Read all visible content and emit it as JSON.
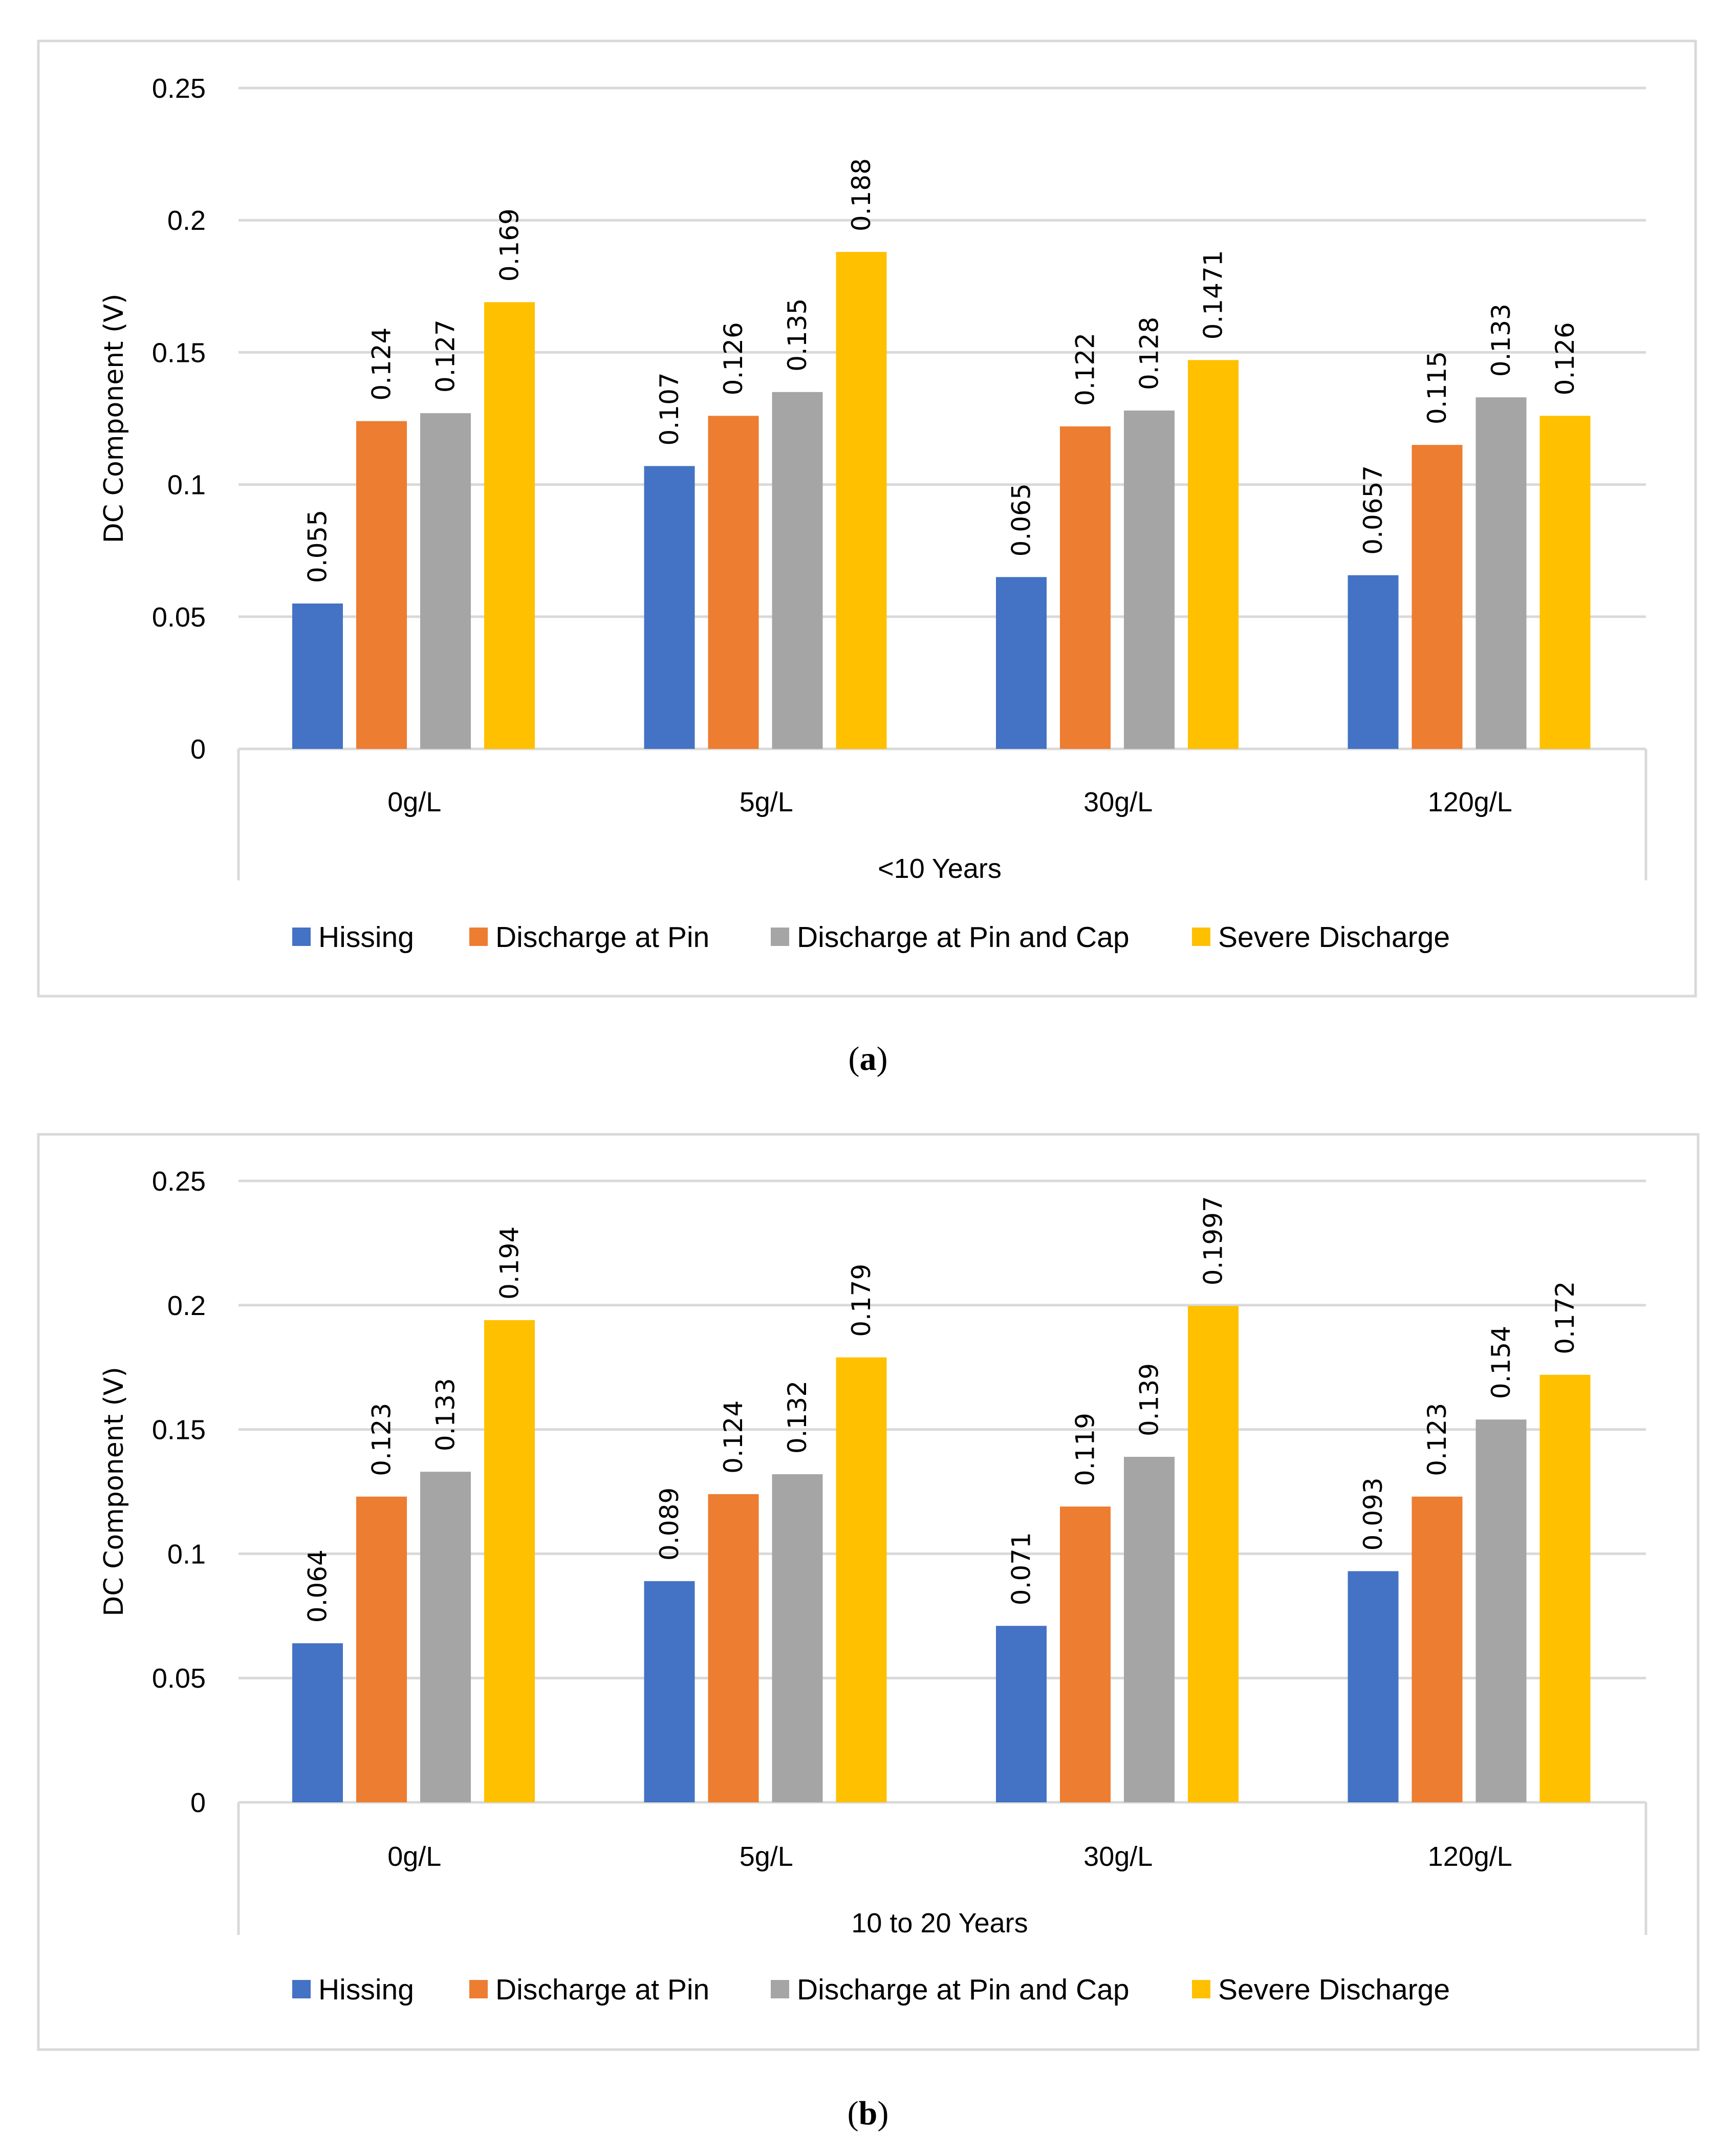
{
  "colors": {
    "series": [
      "#4472C4",
      "#ED7D31",
      "#A5A5A5",
      "#FFC000"
    ],
    "grid": "#D9D9D9",
    "frame": "#D9D9D9"
  },
  "chart_data": [
    {
      "type": "bar",
      "caption_letter": "a",
      "xlabel": "<10 Years",
      "ylabel": "DC Component (V)",
      "ylim": [
        0,
        0.25
      ],
      "yticks": [
        "0",
        "0.05",
        "0.1",
        "0.15",
        "0.2",
        "0.25"
      ],
      "grid": true,
      "legend": "bottom",
      "categories": [
        "0g/L",
        "5g/L",
        "30g/L",
        "120g/L"
      ],
      "series": [
        {
          "name": "Hissing",
          "values": [
            0.055,
            0.107,
            0.065,
            0.0657
          ],
          "labels": [
            "0.055",
            "0.107",
            "0.065",
            "0.0657"
          ]
        },
        {
          "name": "Discharge at Pin",
          "values": [
            0.124,
            0.126,
            0.122,
            0.115
          ],
          "labels": [
            "0.124",
            "0.126",
            "0.122",
            "0.115"
          ]
        },
        {
          "name": "Discharge at Pin and Cap",
          "values": [
            0.127,
            0.135,
            0.128,
            0.133
          ],
          "labels": [
            "0.127",
            "0.135",
            "0.128",
            "0.133"
          ]
        },
        {
          "name": "Severe Discharge",
          "values": [
            0.169,
            0.188,
            0.1471,
            0.126
          ],
          "labels": [
            "0.169",
            "0.188",
            "0.1471",
            "0.126"
          ]
        }
      ]
    },
    {
      "type": "bar",
      "caption_letter": "b",
      "xlabel": "10 to 20 Years",
      "ylabel": "DC Component (V)",
      "ylim": [
        0,
        0.25
      ],
      "yticks": [
        "0",
        "0.05",
        "0.1",
        "0.15",
        "0.2",
        "0.25"
      ],
      "grid": true,
      "legend": "bottom",
      "categories": [
        "0g/L",
        "5g/L",
        "30g/L",
        "120g/L"
      ],
      "series": [
        {
          "name": "Hissing",
          "values": [
            0.064,
            0.089,
            0.071,
            0.093
          ],
          "labels": [
            "0.064",
            "0.089",
            "0.071",
            "0.093"
          ]
        },
        {
          "name": "Discharge at Pin",
          "values": [
            0.123,
            0.124,
            0.119,
            0.123
          ],
          "labels": [
            "0.123",
            "0.124",
            "0.119",
            "0.123"
          ]
        },
        {
          "name": "Discharge at Pin and Cap",
          "values": [
            0.133,
            0.132,
            0.139,
            0.154
          ],
          "labels": [
            "0.133",
            "0.132",
            "0.139",
            "0.154"
          ]
        },
        {
          "name": "Severe Discharge",
          "values": [
            0.194,
            0.179,
            0.1997,
            0.172
          ],
          "labels": [
            "0.194",
            "0.179",
            "0.1997",
            "0.172"
          ]
        }
      ]
    }
  ]
}
